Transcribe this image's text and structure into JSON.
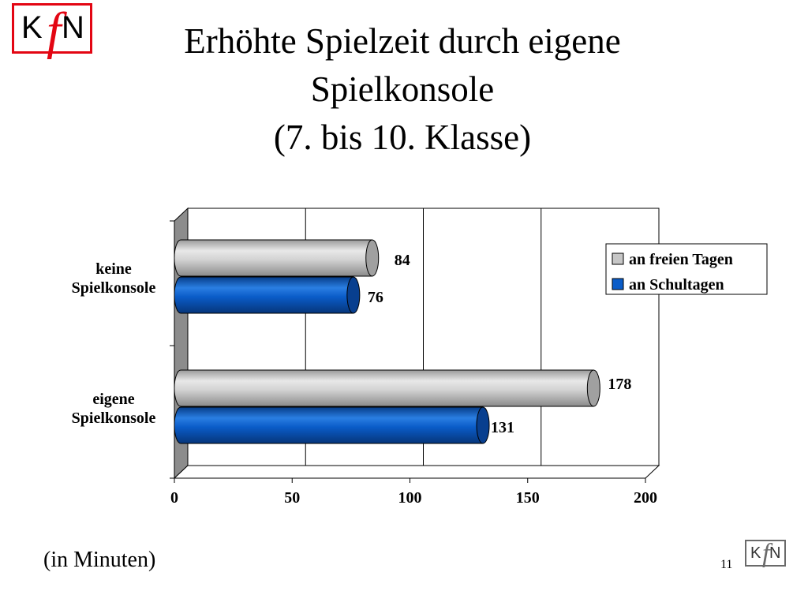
{
  "slide": {
    "title_lines": [
      "Erhöhte Spielzeit durch eigene",
      "Spielkonsole",
      "(7. bis 10. Klasse)"
    ],
    "unit_note": "(in Minuten)",
    "page_number": "11",
    "logo_text": "KfN"
  },
  "chart_data": {
    "type": "bar",
    "orientation": "horizontal",
    "style": "3d-cylinder",
    "categories": [
      [
        "keine",
        "Spielkonsole"
      ],
      [
        "eigene",
        "Spielkonsole"
      ]
    ],
    "series": [
      {
        "name": "an freien Tagen",
        "color": "#c6c6c6",
        "values": [
          84,
          178
        ]
      },
      {
        "name": "an Schultagen",
        "color": "#0a5cc8",
        "values": [
          76,
          131
        ]
      }
    ],
    "xlim": [
      0,
      200
    ],
    "xticks": [
      "0",
      "50",
      "100",
      "150",
      "200"
    ],
    "grid": true,
    "legend_position": "top-right"
  }
}
